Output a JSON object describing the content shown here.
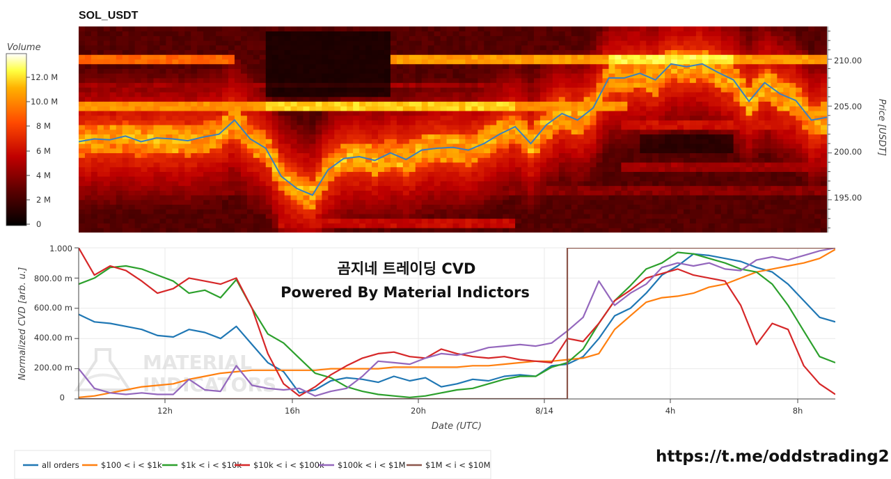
{
  "heatmap": {
    "title": "SOL_USDT",
    "colorbar_title": "Volume",
    "colorbar_ticks": [
      "0",
      "2 M",
      "4 M",
      "6 M",
      "8 M",
      "10.0 M",
      "12.0 M"
    ],
    "ylabel": "Price [USDT]",
    "price_ticks": [
      "195.00",
      "200.00",
      "205.00",
      "210.00"
    ]
  },
  "cvd": {
    "ylabel": "Normalized CVD [arb. u.]",
    "xlabel": "Date (UTC)",
    "y_ticks": [
      "0",
      "200.00 m",
      "400.00 m",
      "600.00 m",
      "800.00 m",
      "1.000"
    ],
    "x_ticks": [
      "12h",
      "16h",
      "20h",
      "8/14",
      "4h",
      "8h"
    ]
  },
  "overlay": {
    "line1": "곰지네 트레이딩 CVD",
    "line2": "Powered By Material Indictors"
  },
  "watermark": {
    "line1": "MATERIAL",
    "line2": "INDICATORS"
  },
  "legend_items": [
    {
      "label": "all orders",
      "color": "#1f77b4"
    },
    {
      "label": "$100 < i < $1k",
      "color": "#ff7f0e"
    },
    {
      "label": "$1k < i < $10k",
      "color": "#2ca02c"
    },
    {
      "label": "$10k < i < $100k",
      "color": "#d62728"
    },
    {
      "label": "$100k < i < $1M",
      "color": "#9467bd"
    },
    {
      "label": "$1M < i < $10M",
      "color": "#8c564b"
    }
  ],
  "link": "https://t.me/oddstrading2",
  "chart_data": [
    {
      "type": "heatmap",
      "title": "SOL_USDT",
      "ylabel": "Price [USDT]",
      "color_scale": "Volume",
      "zlim": [
        0,
        14000000
      ],
      "ylim": [
        191.5,
        213.5
      ],
      "price_series": {
        "name": "price",
        "color": "#3a7fc0",
        "x_hours": [
          0,
          0.5,
          1,
          1.5,
          2,
          2.5,
          3,
          3.5,
          4,
          4.5,
          5,
          5.5,
          6,
          6.5,
          7,
          7.5,
          8,
          8.5,
          9,
          9.5,
          10,
          10.5,
          11,
          11.5,
          12,
          12.5,
          13,
          13.5,
          14,
          14.5,
          15,
          15.5,
          16,
          16.5,
          17,
          17.5,
          18,
          18.5,
          19,
          19.5,
          20,
          20.5,
          21,
          21.5,
          22,
          22.5,
          23,
          23.5,
          24
        ],
        "values": [
          201.2,
          201.5,
          201.4,
          201.8,
          201.2,
          201.6,
          201.5,
          201.3,
          201.7,
          202.0,
          203.5,
          201.5,
          200.5,
          197.5,
          196.2,
          195.5,
          198.2,
          199.4,
          199.6,
          199.2,
          200.0,
          199.3,
          200.3,
          200.5,
          200.6,
          200.3,
          201.0,
          202.0,
          202.8,
          201.0,
          203.0,
          204.2,
          203.5,
          204.8,
          208.0,
          208.0,
          208.5,
          207.8,
          209.5,
          209.2,
          209.5,
          208.6,
          207.8,
          205.5,
          207.5,
          206.3,
          205.6,
          203.5,
          203.8
        ]
      }
    },
    {
      "type": "line",
      "xlabel": "Date (UTC)",
      "ylabel": "Normalized CVD [arb. u.]",
      "ylim": [
        0,
        1
      ],
      "x_ticks": [
        "12h",
        "16h",
        "20h",
        "8/14",
        "4h",
        "8h"
      ],
      "x_hours": [
        0,
        0.5,
        1,
        1.5,
        2,
        2.5,
        3,
        3.5,
        4,
        4.5,
        5,
        5.5,
        6,
        6.5,
        7,
        7.5,
        8,
        8.5,
        9,
        9.5,
        10,
        10.5,
        11,
        11.5,
        12,
        12.5,
        13,
        13.5,
        14,
        14.5,
        15,
        15.5,
        16,
        16.5,
        17,
        17.5,
        18,
        18.5,
        19,
        19.5,
        20,
        20.5,
        21,
        21.5,
        22,
        22.5,
        23,
        23.5,
        24
      ],
      "series": [
        {
          "name": "all orders",
          "color": "#1f77b4",
          "values": [
            0.56,
            0.51,
            0.5,
            0.48,
            0.46,
            0.42,
            0.41,
            0.46,
            0.44,
            0.4,
            0.48,
            0.36,
            0.24,
            0.18,
            0.04,
            0.06,
            0.12,
            0.14,
            0.13,
            0.11,
            0.15,
            0.12,
            0.14,
            0.08,
            0.1,
            0.13,
            0.12,
            0.15,
            0.16,
            0.15,
            0.22,
            0.23,
            0.28,
            0.4,
            0.55,
            0.6,
            0.7,
            0.82,
            0.88,
            0.96,
            0.95,
            0.93,
            0.91,
            0.87,
            0.84,
            0.76,
            0.65,
            0.54,
            0.51
          ]
        },
        {
          "name": "$100 < i < $1k",
          "color": "#ff7f0e",
          "values": [
            0.01,
            0.02,
            0.04,
            0.06,
            0.08,
            0.09,
            0.1,
            0.13,
            0.15,
            0.17,
            0.18,
            0.19,
            0.19,
            0.19,
            0.19,
            0.19,
            0.2,
            0.2,
            0.2,
            0.2,
            0.21,
            0.21,
            0.21,
            0.21,
            0.21,
            0.22,
            0.22,
            0.23,
            0.24,
            0.25,
            0.25,
            0.26,
            0.27,
            0.3,
            0.46,
            0.55,
            0.64,
            0.67,
            0.68,
            0.7,
            0.74,
            0.76,
            0.8,
            0.84,
            0.86,
            0.88,
            0.9,
            0.93,
            0.99
          ]
        },
        {
          "name": "$1k < i < $10k",
          "color": "#2ca02c",
          "values": [
            0.76,
            0.8,
            0.87,
            0.88,
            0.86,
            0.82,
            0.78,
            0.7,
            0.72,
            0.67,
            0.79,
            0.6,
            0.43,
            0.37,
            0.27,
            0.17,
            0.14,
            0.08,
            0.05,
            0.03,
            0.02,
            0.01,
            0.02,
            0.04,
            0.06,
            0.07,
            0.1,
            0.13,
            0.15,
            0.15,
            0.21,
            0.24,
            0.33,
            0.5,
            0.65,
            0.75,
            0.86,
            0.9,
            0.97,
            0.96,
            0.93,
            0.9,
            0.86,
            0.84,
            0.76,
            0.62,
            0.45,
            0.28,
            0.24
          ]
        },
        {
          "name": "$10k < i < $100k",
          "color": "#d62728",
          "values": [
            1.0,
            0.82,
            0.88,
            0.85,
            0.78,
            0.7,
            0.73,
            0.8,
            0.78,
            0.76,
            0.8,
            0.6,
            0.3,
            0.1,
            0.02,
            0.08,
            0.16,
            0.22,
            0.27,
            0.3,
            0.31,
            0.28,
            0.27,
            0.33,
            0.3,
            0.28,
            0.27,
            0.28,
            0.26,
            0.25,
            0.24,
            0.4,
            0.38,
            0.5,
            0.65,
            0.72,
            0.8,
            0.83,
            0.86,
            0.82,
            0.8,
            0.78,
            0.62,
            0.36,
            0.5,
            0.46,
            0.22,
            0.1,
            0.03
          ]
        },
        {
          "name": "$100k < i < $1M",
          "color": "#9467bd",
          "values": [
            0.2,
            0.07,
            0.04,
            0.03,
            0.04,
            0.03,
            0.03,
            0.13,
            0.06,
            0.05,
            0.22,
            0.09,
            0.07,
            0.06,
            0.07,
            0.02,
            0.05,
            0.07,
            0.15,
            0.25,
            0.24,
            0.23,
            0.27,
            0.3,
            0.29,
            0.31,
            0.34,
            0.35,
            0.36,
            0.35,
            0.37,
            0.45,
            0.54,
            0.78,
            0.62,
            0.7,
            0.76,
            0.87,
            0.9,
            0.88,
            0.9,
            0.86,
            0.85,
            0.92,
            0.94,
            0.92,
            0.95,
            0.98,
            1.0
          ]
        },
        {
          "name": "$1M < i < $10M",
          "color": "#8c564b",
          "values": [
            0.0,
            0.0,
            0.0,
            0.0,
            0.0,
            0.0,
            0.0,
            0.0,
            0.0,
            0.0,
            0.0,
            0.0,
            0.0,
            0.0,
            0.0,
            0.0,
            0.0,
            0.0,
            0.0,
            0.0,
            0.0,
            0.0,
            0.0,
            0.0,
            0.0,
            0.0,
            0.0,
            0.0,
            0.0,
            0.0,
            0.0,
            1.0,
            1.0,
            1.0,
            1.0,
            1.0,
            1.0,
            1.0,
            1.0,
            1.0,
            1.0,
            1.0,
            1.0,
            1.0,
            1.0,
            1.0,
            1.0,
            1.0,
            1.0
          ]
        }
      ]
    }
  ]
}
